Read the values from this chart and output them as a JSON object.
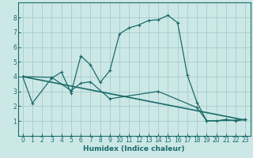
{
  "xlabel": "Humidex (Indice chaleur)",
  "bg_color": "#cce8e6",
  "line_color": "#1a6b6b",
  "grid_color": "#aacfcd",
  "xlim": [
    -0.5,
    23.5
  ],
  "ylim": [
    0,
    9
  ],
  "xticks": [
    0,
    1,
    2,
    3,
    4,
    5,
    6,
    7,
    8,
    9,
    10,
    11,
    12,
    13,
    14,
    15,
    16,
    17,
    18,
    19,
    20,
    21,
    22,
    23
  ],
  "yticks": [
    1,
    2,
    3,
    4,
    5,
    6,
    7,
    8
  ],
  "series1": [
    [
      0,
      4.0
    ],
    [
      1,
      2.2
    ],
    [
      3,
      3.9
    ],
    [
      4,
      4.3
    ],
    [
      5,
      2.9
    ],
    [
      6,
      5.4
    ],
    [
      7,
      4.8
    ],
    [
      8,
      3.6
    ],
    [
      9,
      4.4
    ],
    [
      10,
      6.9
    ],
    [
      11,
      7.3
    ],
    [
      12,
      7.5
    ],
    [
      13,
      7.8
    ],
    [
      14,
      7.85
    ],
    [
      15,
      8.15
    ],
    [
      16,
      7.65
    ],
    [
      17,
      4.1
    ],
    [
      18,
      2.25
    ],
    [
      19,
      1.0
    ],
    [
      20,
      1.0
    ],
    [
      21,
      1.1
    ],
    [
      22,
      1.0
    ],
    [
      23,
      1.1
    ]
  ],
  "series2": [
    [
      0,
      4.0
    ],
    [
      3,
      3.95
    ],
    [
      5,
      3.05
    ],
    [
      6,
      3.55
    ],
    [
      7,
      3.65
    ],
    [
      9,
      2.5
    ],
    [
      14,
      3.0
    ],
    [
      18,
      1.9
    ],
    [
      19,
      1.0
    ],
    [
      22,
      1.05
    ],
    [
      23,
      1.1
    ]
  ],
  "series3": [
    [
      0,
      4.0
    ],
    [
      23,
      1.05
    ]
  ],
  "xlabel_fontsize": 6.5,
  "tick_fontsize": 5.5
}
